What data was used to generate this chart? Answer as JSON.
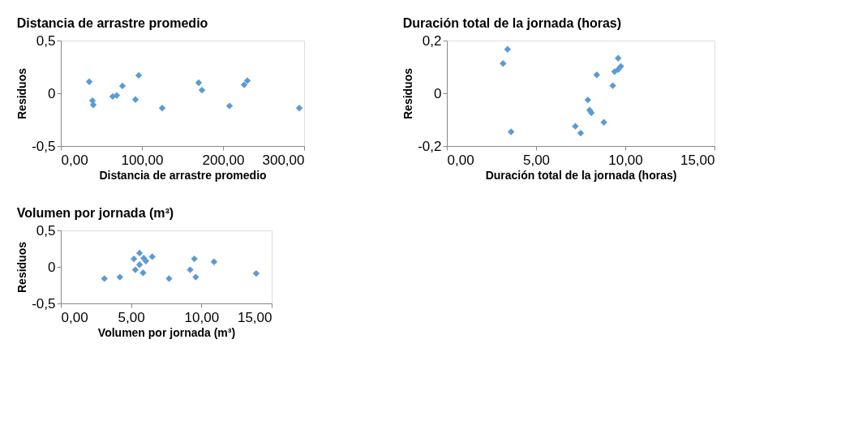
{
  "chart_data": [
    {
      "type": "scatter",
      "title": "Distancia de arrastre promedio",
      "xlabel": "Distancia de arrastre promedio",
      "ylabel": "Residuos",
      "marker": "diamond",
      "grid": false,
      "xlim": [
        0,
        300
      ],
      "ylim": [
        -0.5,
        0.5
      ],
      "xticks": [
        {
          "value": 0,
          "label": "0,00"
        },
        {
          "value": 100,
          "label": "100,00"
        },
        {
          "value": 200,
          "label": "200,00"
        },
        {
          "value": 300,
          "label": "300,00"
        }
      ],
      "yticks": [
        {
          "value": -0.5,
          "label": "-0,5"
        },
        0,
        {
          "value": 0.5,
          "label": "0,5"
        }
      ],
      "series": [
        {
          "color": "#5b9bd5",
          "x": [
            35,
            39,
            40,
            64,
            69,
            76,
            96,
            92,
            125,
            170,
            174,
            208,
            226,
            230,
            294
          ],
          "values": [
            0.11,
            -0.07,
            -0.11,
            -0.03,
            -0.02,
            0.07,
            0.17,
            -0.06,
            -0.14,
            0.1,
            0.03,
            -0.12,
            0.08,
            0.12,
            -0.14
          ]
        }
      ]
    },
    {
      "type": "scatter",
      "title": "Duración total de la jornada (horas)",
      "xlabel": "Duración total de la jornada (horas)",
      "ylabel": "Residuos",
      "marker": "diamond",
      "grid": false,
      "xlim": [
        0,
        15
      ],
      "ylim": [
        -0.2,
        0.2
      ],
      "xticks": [
        {
          "value": 0,
          "label": "0,00"
        },
        {
          "value": 5,
          "label": "5,00"
        },
        {
          "value": 10,
          "label": "10,00"
        },
        {
          "value": 15,
          "label": "15,00"
        }
      ],
      "yticks": [
        {
          "value": -0.2,
          "label": "-0,2"
        },
        0,
        {
          "value": 0.2,
          "label": "0,2"
        }
      ],
      "series": [
        {
          "color": "#5b9bd5",
          "x": [
            3.15,
            3.4,
            3.6,
            7.2,
            7.5,
            7.9,
            8.0,
            8.1,
            8.4,
            8.8,
            9.3,
            9.4,
            9.6,
            9.6,
            9.75
          ],
          "values": [
            0.113,
            0.167,
            -0.146,
            -0.125,
            -0.151,
            -0.025,
            -0.064,
            -0.074,
            0.07,
            -0.11,
            0.029,
            0.082,
            0.09,
            0.133,
            0.102
          ]
        }
      ]
    },
    {
      "type": "scatter",
      "title": "Volumen por jornada (m³)",
      "xlabel": "Volumen por jornada (m³)",
      "ylabel": "Residuos",
      "marker": "diamond",
      "grid": false,
      "xlim": [
        0,
        15
      ],
      "ylim": [
        -0.5,
        0.5
      ],
      "xticks": [
        {
          "value": 0,
          "label": "0,00"
        },
        {
          "value": 5,
          "label": "5,00"
        },
        {
          "value": 10,
          "label": "10,00"
        },
        {
          "value": 15,
          "label": "15,00"
        }
      ],
      "yticks": [
        {
          "value": -0.5,
          "label": "-0,5"
        },
        0,
        {
          "value": 0.5,
          "label": "0,5"
        }
      ],
      "series": [
        {
          "color": "#5b9bd5",
          "x": [
            3.1,
            4.2,
            5.2,
            5.6,
            5.3,
            5.6,
            5.85,
            6.05,
            6.5,
            5.9,
            7.7,
            9.5,
            9.2,
            9.6,
            10.9,
            13.9
          ],
          "values": [
            -0.16,
            -0.14,
            0.11,
            0.19,
            -0.04,
            0.03,
            -0.08,
            0.08,
            0.14,
            0.12,
            -0.16,
            0.11,
            -0.04,
            -0.14,
            0.07,
            -0.09
          ]
        }
      ]
    }
  ]
}
